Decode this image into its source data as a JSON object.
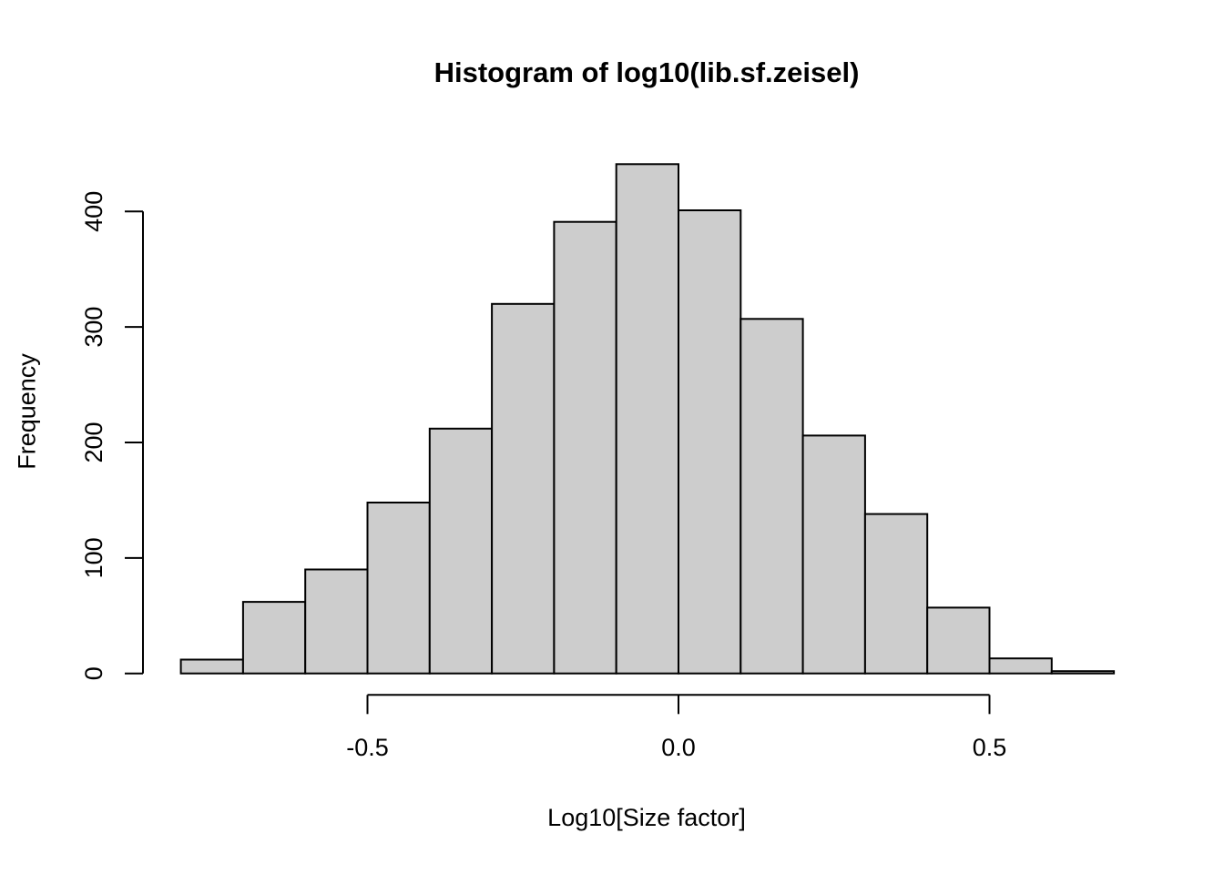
{
  "chart_data": {
    "type": "bar",
    "subtype": "histogram",
    "title": "Histogram of log10(lib.sf.zeisel)",
    "xlabel": "Log10[Size factor]",
    "ylabel": "Frequency",
    "bins": {
      "start": -0.8,
      "width": 0.1,
      "count": 15
    },
    "bin_edges": [
      -0.8,
      -0.7,
      -0.6,
      -0.5,
      -0.4,
      -0.3,
      -0.2,
      -0.1,
      0.0,
      0.1,
      0.2,
      0.3,
      0.4,
      0.5,
      0.6,
      0.7
    ],
    "values": [
      12,
      62,
      90,
      148,
      212,
      320,
      391,
      441,
      401,
      307,
      206,
      138,
      57,
      13,
      2
    ],
    "x_ticks": [
      {
        "value": -0.5,
        "label": "-0.5"
      },
      {
        "value": 0.0,
        "label": "0.0"
      },
      {
        "value": 0.5,
        "label": "0.5"
      }
    ],
    "y_ticks": [
      {
        "value": 0,
        "label": "0"
      },
      {
        "value": 100,
        "label": "100"
      },
      {
        "value": 200,
        "label": "200"
      },
      {
        "value": 300,
        "label": "300"
      },
      {
        "value": 400,
        "label": "400"
      }
    ],
    "xlim": [
      -0.8,
      0.7
    ],
    "ylim": [
      0,
      441
    ],
    "grid": false,
    "legend": null,
    "colors": {
      "bar_fill": "#cdcdcd",
      "bar_stroke": "#000000",
      "axis": "#000000",
      "text": "#000000",
      "background": "#ffffff"
    }
  }
}
